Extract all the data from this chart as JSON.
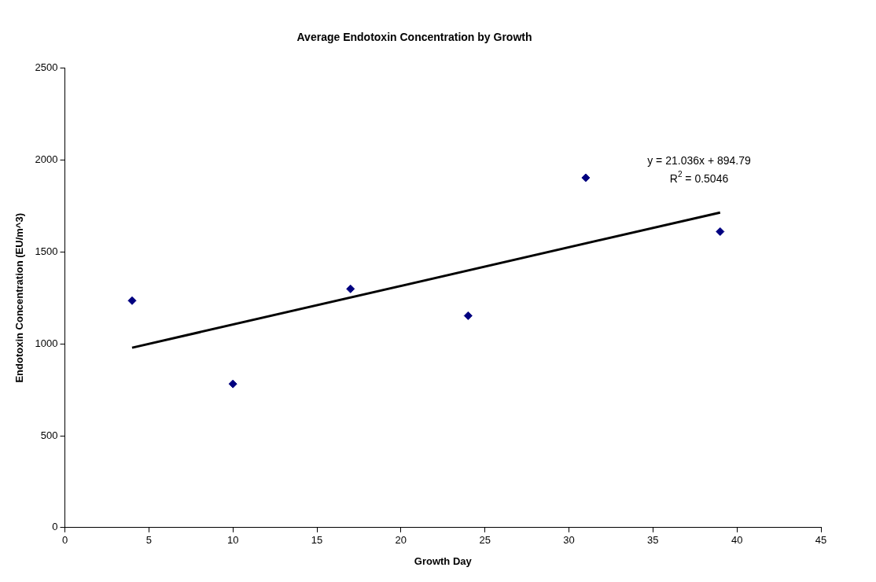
{
  "chart_data": {
    "type": "scatter",
    "title": "Average Endotoxin Concentration by Growth",
    "xlabel": "Growth Day",
    "ylabel": "Endotoxin Concentration (EU/m^3)",
    "series": [
      {
        "color": "#000080",
        "x": [
          4,
          10,
          17,
          24,
          31,
          39
        ],
        "values": [
          1235,
          782,
          1299,
          1153,
          1904,
          1611
        ],
        "marker": "diamond"
      },
      {
        "type": "line",
        "color": "#000000",
        "x": [
          4,
          39
        ],
        "values": [
          979,
          1715
        ],
        "marker": "none",
        "line_style": "solid"
      }
    ],
    "annotations": [
      "y = 21.036x + 894.79",
      "R$^{2}$ = 0.5046"
    ],
    "xlim": [
      0,
      45
    ],
    "xticks": [
      0,
      5,
      10,
      15,
      20,
      25,
      30,
      35,
      40,
      45
    ],
    "ylim": [
      0,
      2500
    ],
    "yticks": [
      0,
      500,
      1000,
      1500,
      2000,
      2500
    ],
    "grid": false,
    "legend": false
  }
}
